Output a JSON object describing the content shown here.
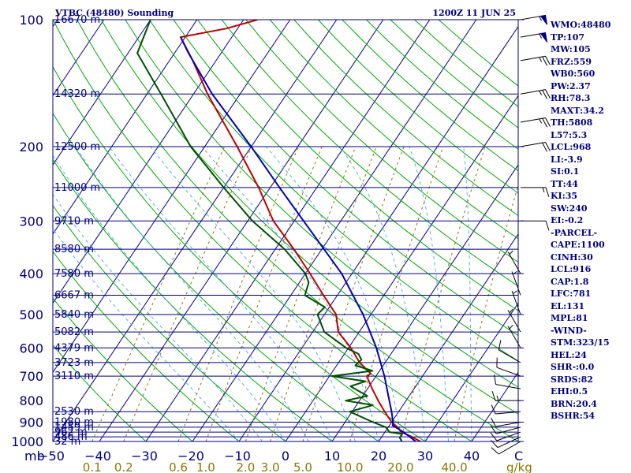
{
  "header": {
    "station": "VTBC (48480) Sounding",
    "time": "1200Z 11 JUN 25"
  },
  "axes": {
    "pressure_unit_label": "mb",
    "temp_unit_label": "C",
    "mixing_unit_label": "g/kg"
  },
  "colors": {
    "frame": "#000080",
    "isotherm": "#000080",
    "dry_adiabat": "#00AA00",
    "moist_adiabat": "#55AAFF",
    "mixing_ratio": "#8B7500",
    "temperature": "#C00000",
    "dewpoint": "#005000",
    "parcel": "#0000C0"
  },
  "chart_data": {
    "type": "line",
    "title": "VTBC (48480) Sounding",
    "subtitle": "1200Z 11 JUN 25",
    "skew_t": true,
    "plim": [
      1000,
      100
    ],
    "xlim": [
      -50,
      50
    ],
    "pressure_ticks": [
      1000,
      900,
      800,
      700,
      600,
      500,
      400,
      300,
      200,
      100
    ],
    "temperature_ticks": [
      -50,
      -40,
      -30,
      -20,
      -10,
      0,
      10,
      20,
      30,
      40
    ],
    "height_levels": [
      {
        "p": 1000,
        "h": "32 m"
      },
      {
        "p": 975,
        "h": "486 m"
      },
      {
        "p": 950,
        "h": "962 m"
      },
      {
        "p": 925,
        "h": "1459 m"
      },
      {
        "p": 900,
        "h": "1980 m"
      },
      {
        "p": 850,
        "h": "2530 m"
      },
      {
        "p": 700,
        "h": "3110 m"
      },
      {
        "p": 650,
        "h": "3723 m"
      },
      {
        "p": 600,
        "h": "4379 m"
      },
      {
        "p": 550,
        "h": "5082 m"
      },
      {
        "p": 500,
        "h": "5840 m"
      },
      {
        "p": 450,
        "h": "6667 m"
      },
      {
        "p": 400,
        "h": "7580 m"
      },
      {
        "p": 350,
        "h": "8580 m"
      },
      {
        "p": 300,
        "h": "9710 m"
      },
      {
        "p": 250,
        "h": "11000 m"
      },
      {
        "p": 200,
        "h": "12500 m"
      },
      {
        "p": 150,
        "h": "14320 m"
      },
      {
        "p": 100,
        "h": "16670 m"
      }
    ],
    "mixing_ratio_labels": [
      "0.1",
      "0.2",
      "0.6",
      "1.0",
      "2.0",
      "3.0",
      "5.0",
      "10.0",
      "20.0",
      "40.0"
    ],
    "mixing_ratio_values": [
      0.1,
      0.2,
      0.6,
      1.0,
      2.0,
      3.0,
      5.0,
      10.0,
      20.0,
      40.0
    ],
    "series": [
      {
        "name": "temperature",
        "points": [
          [
            1000,
            29.0
          ],
          [
            975,
            26.5
          ],
          [
            950,
            23.5
          ],
          [
            925,
            22.0
          ],
          [
            900,
            20.0
          ],
          [
            850,
            17.0
          ],
          [
            800,
            14.0
          ],
          [
            750,
            11.0
          ],
          [
            700,
            8.0
          ],
          [
            690,
            8.5
          ],
          [
            650,
            4.5
          ],
          [
            600,
            0.5
          ],
          [
            550,
            -4.5
          ],
          [
            500,
            -7.5
          ],
          [
            450,
            -13.0
          ],
          [
            400,
            -19.0
          ],
          [
            350,
            -26.0
          ],
          [
            300,
            -34.5
          ],
          [
            250,
            -42.5
          ],
          [
            200,
            -53.0
          ],
          [
            150,
            -67.0
          ],
          [
            125,
            -75.0
          ],
          [
            110,
            -81.0
          ],
          [
            105,
            -72.5
          ],
          [
            100,
            -67.0
          ]
        ]
      },
      {
        "name": "dewpoint",
        "points": [
          [
            1000,
            25.0
          ],
          [
            980,
            24.0
          ],
          [
            960,
            24.0
          ],
          [
            950,
            21.0
          ],
          [
            925,
            19.5
          ],
          [
            900,
            16.0
          ],
          [
            850,
            9.5
          ],
          [
            820,
            13.5
          ],
          [
            800,
            7.0
          ],
          [
            780,
            11.0
          ],
          [
            740,
            6.0
          ],
          [
            720,
            8.5
          ],
          [
            700,
            0.5
          ],
          [
            680,
            8.5
          ],
          [
            660,
            4.0
          ],
          [
            640,
            4.5
          ],
          [
            620,
            3.0
          ],
          [
            600,
            -0.5
          ],
          [
            550,
            -7.5
          ],
          [
            500,
            -11.5
          ],
          [
            480,
            -11.0
          ],
          [
            470,
            -13.0
          ],
          [
            450,
            -17.0
          ],
          [
            420,
            -18.0
          ],
          [
            400,
            -20.0
          ],
          [
            350,
            -28.0
          ],
          [
            300,
            -39.0
          ],
          [
            250,
            -50.0
          ],
          [
            200,
            -63.0
          ],
          [
            150,
            -77.0
          ],
          [
            120,
            -88.0
          ],
          [
            100,
            -90.0
          ]
        ]
      },
      {
        "name": "parcel",
        "points": [
          [
            1000,
            28.0
          ],
          [
            950,
            24.0
          ],
          [
            916,
            20.7
          ],
          [
            900,
            20.3
          ],
          [
            850,
            18.5
          ],
          [
            800,
            16.4
          ],
          [
            700,
            11.8
          ],
          [
            600,
            6.0
          ],
          [
            500,
            -1.7
          ],
          [
            400,
            -12.2
          ],
          [
            300,
            -28.0
          ],
          [
            250,
            -38.0
          ],
          [
            200,
            -50.0
          ],
          [
            150,
            -66.0
          ],
          [
            120,
            -77.0
          ],
          [
            110,
            -81.0
          ]
        ]
      }
    ],
    "wind_barbs": [
      {
        "p": 1000,
        "dir": 240,
        "spd": 10
      },
      {
        "p": 975,
        "dir": 245,
        "spd": 10
      },
      {
        "p": 950,
        "dir": 250,
        "spd": 10
      },
      {
        "p": 925,
        "dir": 255,
        "spd": 10
      },
      {
        "p": 900,
        "dir": 260,
        "spd": 10
      },
      {
        "p": 850,
        "dir": 265,
        "spd": 10
      },
      {
        "p": 800,
        "dir": 270,
        "spd": 15
      },
      {
        "p": 750,
        "dir": 280,
        "spd": 10
      },
      {
        "p": 700,
        "dir": 290,
        "spd": 10
      },
      {
        "p": 650,
        "dir": 300,
        "spd": 10
      },
      {
        "p": 600,
        "dir": 330,
        "spd": 5
      },
      {
        "p": 550,
        "dir": 330,
        "spd": 5
      },
      {
        "p": 500,
        "dir": 340,
        "spd": 5
      },
      {
        "p": 450,
        "dir": 340,
        "spd": 5
      },
      {
        "p": 400,
        "dir": 330,
        "spd": 5
      },
      {
        "p": 300,
        "dir": 90,
        "spd": 10
      },
      {
        "p": 250,
        "dir": 90,
        "spd": 15
      },
      {
        "p": 200,
        "dir": 80,
        "spd": 20
      },
      {
        "p": 175,
        "dir": 80,
        "spd": 25
      },
      {
        "p": 150,
        "dir": 80,
        "spd": 25
      },
      {
        "p": 125,
        "dir": 80,
        "spd": 25
      },
      {
        "p": 110,
        "dir": 80,
        "spd": 55
      },
      {
        "p": 100,
        "dir": 80,
        "spd": 55
      }
    ],
    "indices": [
      "WMO:48480",
      "TP:107",
      "MW:105",
      "FRZ:559",
      "WB0:560",
      "PW:2.37",
      "RH:78.3",
      "MAXT:34.2",
      "TH:5808",
      "L57:5.3",
      "LCL:968",
      "LI:-3.9",
      "SI:0.1",
      "TT:44",
      "KI:35",
      "SW:240",
      "EI:-0.2",
      "-PARCEL-",
      "CAPE:1100",
      "CINH:30",
      "LCL:916",
      "CAP:1.8",
      "LFC:781",
      "EL:131",
      "MPL:81",
      "-WIND-",
      "STM:323/15",
      "HEL:24",
      "SHR-:0.0",
      "SRDS:82",
      "EHI:0.5",
      "BRN:20.4",
      "BSHR:54"
    ]
  }
}
